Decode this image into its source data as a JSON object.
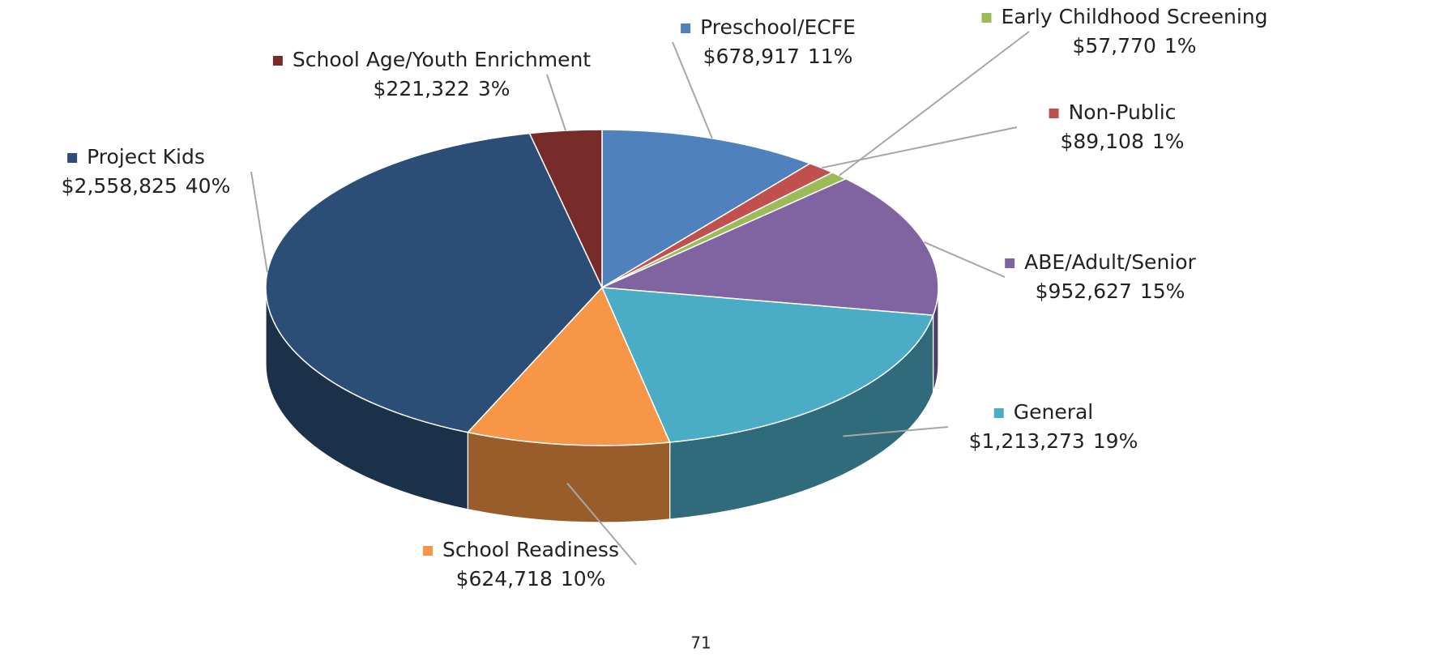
{
  "chart_data": {
    "type": "pie3d",
    "categories": [
      "Preschool/ECFE",
      "Non-Public",
      "Early Childhood Screening",
      "ABE/Adult/Senior",
      "General",
      "School Readiness",
      "Project Kids",
      "School Age/Youth Enrichment"
    ],
    "values": [
      678917,
      89108,
      57770,
      952627,
      1213273,
      624718,
      2558825,
      221322
    ],
    "value_labels": [
      "$678,917",
      "$89,108",
      "$57,770",
      "$952,627",
      "$1,213,273",
      "$624,718",
      "$2,558,825",
      "$221,322"
    ],
    "percent_labels": [
      "11%",
      "1%",
      "1%",
      "15%",
      "19%",
      "10%",
      "40%",
      "3%"
    ],
    "colors": [
      "#4f81bd",
      "#c0504d",
      "#9bbb59",
      "#8064a2",
      "#4bacc6",
      "#f79646",
      "#2c4d75",
      "#772c2a"
    ],
    "annotation": "71"
  }
}
